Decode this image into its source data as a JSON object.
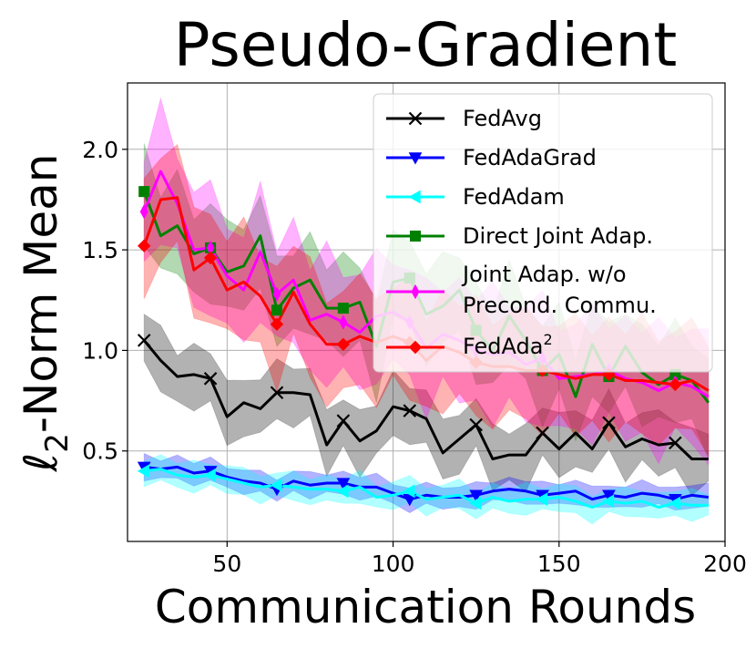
{
  "chart_data": {
    "type": "line",
    "title": "Pseudo-Gradient",
    "xlabel": "Communication Rounds",
    "ylabel_main": "ℓ",
    "ylabel_sub": "2",
    "ylabel_rest": "-Norm Mean",
    "xlim": [
      20,
      200
    ],
    "ylim": [
      0.05,
      2.33
    ],
    "xticks": [
      50,
      100,
      150,
      200
    ],
    "xtick_labels": [
      "50",
      "100",
      "150",
      "200"
    ],
    "yticks": [
      0.5,
      1.0,
      1.5,
      2.0
    ],
    "ytick_labels": [
      "0.5",
      "1.0",
      "1.5",
      "2.0"
    ],
    "grid": true,
    "legend_location": "upper right",
    "x": [
      25,
      30,
      35,
      40,
      45,
      50,
      55,
      60,
      65,
      70,
      75,
      80,
      85,
      90,
      95,
      100,
      105,
      110,
      115,
      120,
      125,
      130,
      135,
      140,
      145,
      150,
      155,
      160,
      165,
      170,
      175,
      180,
      185,
      190,
      195
    ],
    "series": [
      {
        "name": "FedAvg",
        "color": "#000000",
        "marker": "x",
        "band_width": 0.13,
        "values": [
          1.05,
          0.95,
          0.87,
          0.88,
          0.86,
          0.67,
          0.74,
          0.71,
          0.79,
          0.79,
          0.78,
          0.53,
          0.65,
          0.55,
          0.6,
          0.72,
          0.7,
          0.66,
          0.49,
          0.56,
          0.63,
          0.46,
          0.48,
          0.48,
          0.59,
          0.51,
          0.59,
          0.51,
          0.64,
          0.52,
          0.56,
          0.53,
          0.54,
          0.46,
          0.46
        ]
      },
      {
        "name": "FedAdaGrad",
        "color": "#0000ff",
        "marker": "v",
        "band_width": 0.05,
        "values": [
          0.42,
          0.41,
          0.42,
          0.39,
          0.4,
          0.37,
          0.35,
          0.34,
          0.31,
          0.35,
          0.33,
          0.34,
          0.34,
          0.32,
          0.32,
          0.29,
          0.26,
          0.28,
          0.27,
          0.27,
          0.28,
          0.3,
          0.31,
          0.3,
          0.28,
          0.29,
          0.3,
          0.26,
          0.28,
          0.27,
          0.29,
          0.28,
          0.26,
          0.28,
          0.27
        ]
      },
      {
        "name": "FedAdam",
        "color": "#00ffff",
        "marker": "<",
        "band_width": 0.06,
        "values": [
          0.4,
          0.41,
          0.38,
          0.37,
          0.38,
          0.36,
          0.34,
          0.32,
          0.33,
          0.32,
          0.31,
          0.31,
          0.3,
          0.32,
          0.27,
          0.28,
          0.3,
          0.26,
          0.27,
          0.28,
          0.24,
          0.27,
          0.25,
          0.26,
          0.26,
          0.27,
          0.25,
          0.22,
          0.25,
          0.24,
          0.25,
          0.22,
          0.24,
          0.23,
          0.23
        ]
      },
      {
        "name": "Direct Joint Adap.",
        "color": "#008000",
        "marker": "s",
        "band_width": 0.2,
        "values": [
          1.79,
          1.57,
          1.62,
          1.48,
          1.51,
          1.39,
          1.42,
          1.57,
          1.2,
          1.31,
          1.35,
          1.21,
          1.21,
          1.24,
          1.02,
          1.34,
          1.36,
          1.18,
          1.22,
          1.3,
          1.1,
          1.0,
          1.17,
          1.05,
          0.9,
          0.98,
          0.77,
          1.03,
          0.87,
          1.02,
          0.89,
          0.83,
          0.88,
          0.85,
          0.74
        ]
      },
      {
        "name": "Joint Adap. w/o\nPrecond. Commu.",
        "color": "#ff00ff",
        "marker": "d",
        "band_width": 0.26,
        "values": [
          1.69,
          1.89,
          1.73,
          1.5,
          1.51,
          1.37,
          1.3,
          1.49,
          1.28,
          1.35,
          1.15,
          1.18,
          1.14,
          1.09,
          1.17,
          1.19,
          1.14,
          1.01,
          1.08,
          1.05,
          1.0,
          0.98,
          0.99,
          0.93,
          0.96,
          0.86,
          0.87,
          0.88,
          0.9,
          0.86,
          0.84,
          0.8,
          0.84,
          0.82,
          0.77
        ]
      },
      {
        "name_main": "FedAda",
        "name_sup": "2",
        "color": "#ff0000",
        "marker": "D",
        "band_width": 0.24,
        "values": [
          1.52,
          1.75,
          1.76,
          1.4,
          1.46,
          1.3,
          1.34,
          1.27,
          1.13,
          1.29,
          1.13,
          1.03,
          1.03,
          1.07,
          1.04,
          1.07,
          1.04,
          0.95,
          1.02,
          0.99,
          0.94,
          0.92,
          0.92,
          0.9,
          0.9,
          0.88,
          0.86,
          0.88,
          0.88,
          0.85,
          0.85,
          0.84,
          0.83,
          0.85,
          0.8
        ]
      }
    ],
    "marker_indices": [
      0,
      4,
      8,
      12,
      16,
      20,
      24,
      28,
      32
    ]
  }
}
